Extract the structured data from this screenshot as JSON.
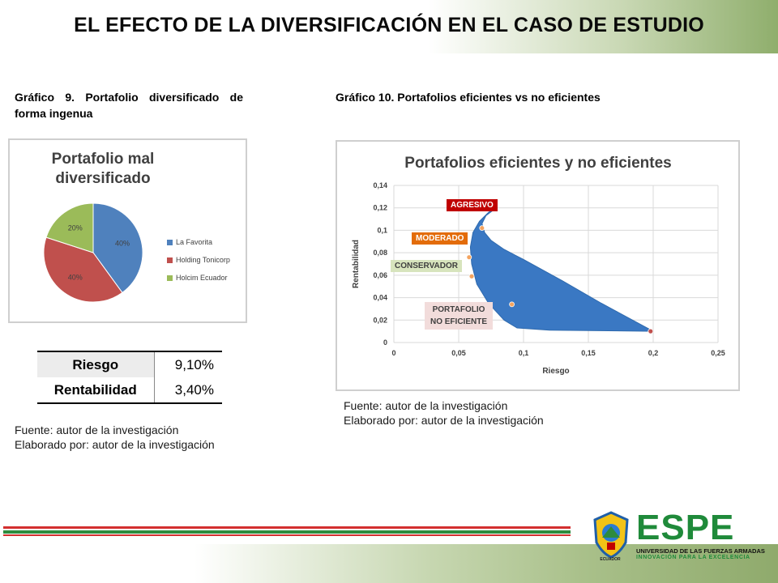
{
  "header": {
    "title": "EL EFECTO DE LA DIVERSIFICACIÓN EN EL CASO DE ESTUDIO"
  },
  "left": {
    "caption": "Gráfico 9. Portafolio diversificado de forma ingenua",
    "source_line1": "Fuente: autor de la investigación",
    "source_line2": "Elaborado por: autor de la investigación"
  },
  "right": {
    "caption": "Gráfico 10. Portafolios eficientes vs no eficientes",
    "source_line1": "Fuente: autor de la investigación",
    "source_line2": "Elaborado por: autor de la investigación"
  },
  "table": {
    "rows": [
      {
        "label": "Riesgo",
        "value": "9,10%"
      },
      {
        "label": "Rentabilidad",
        "value": "3,40%"
      }
    ]
  },
  "colors": {
    "la_favorita": "#4f81bd",
    "holding": "#c0504d",
    "holcim": "#9bbb59",
    "frontier": "#3a78c3",
    "agresivo": "#c00000",
    "moderado": "#e36c0a",
    "conservador": "#d7e4bd",
    "no_eficiente": "#f2dcdb"
  },
  "chart_data": [
    {
      "type": "pie",
      "title": "Portafolio mal diversificado",
      "title_line1": "Portafolio mal",
      "title_line2": "diversificado",
      "categories": [
        "La Favorita",
        "Holding Tonicorp",
        "Holcim Ecuador"
      ],
      "values": [
        40,
        40,
        20
      ],
      "labels": [
        "40%",
        "40%",
        "20%"
      ],
      "legend": "right"
    },
    {
      "type": "scatter",
      "title": "Portafolios eficientes y no eficientes",
      "xlabel": "Riesgo",
      "ylabel": "Rentabilidad",
      "xlim": [
        0,
        0.25
      ],
      "ylim": [
        0,
        0.14
      ],
      "xticks": [
        "0",
        "0,05",
        "0,1",
        "0,15",
        "0,2",
        "0,25"
      ],
      "yticks": [
        "0",
        "0,02",
        "0,04",
        "0,06",
        "0,08",
        "0,1",
        "0,12",
        "0,14"
      ],
      "grid": true,
      "region_outline": [
        [
          0.2,
          0.01
        ],
        [
          0.16,
          0.035
        ],
        [
          0.13,
          0.055
        ],
        [
          0.1,
          0.074
        ],
        [
          0.085,
          0.083
        ],
        [
          0.075,
          0.091
        ],
        [
          0.07,
          0.098
        ],
        [
          0.068,
          0.106
        ],
        [
          0.071,
          0.113
        ],
        [
          0.079,
          0.12
        ],
        [
          0.073,
          0.116
        ],
        [
          0.066,
          0.108
        ],
        [
          0.061,
          0.098
        ],
        [
          0.059,
          0.085
        ],
        [
          0.06,
          0.07
        ],
        [
          0.064,
          0.052
        ],
        [
          0.073,
          0.035
        ],
        [
          0.085,
          0.02
        ],
        [
          0.095,
          0.013
        ],
        [
          0.12,
          0.011
        ],
        [
          0.2,
          0.01
        ]
      ],
      "points": [
        {
          "label": "AGRESIVO",
          "x": 0.068,
          "y": 0.102
        },
        {
          "label": "MODERADO",
          "x": 0.058,
          "y": 0.076
        },
        {
          "label": "CONSERVADOR",
          "x": 0.06,
          "y": 0.059
        },
        {
          "label": "PORTAFOLIO NO EFICIENTE",
          "x": 0.091,
          "y": 0.034
        },
        {
          "label": "",
          "x": 0.198,
          "y": 0.01
        }
      ],
      "annotations": [
        "AGRESIVO",
        "MODERADO",
        "CONSERVADOR",
        "PORTAFOLIO NO EFICIENTE"
      ]
    }
  ],
  "logo": {
    "name": "ESPE",
    "subtitle": "UNIVERSIDAD DE LAS FUERZAS ARMADAS",
    "tagline": "INNOVACIÓN PARA LA EXCELENCIA",
    "crest_label": "ECUADOR"
  }
}
